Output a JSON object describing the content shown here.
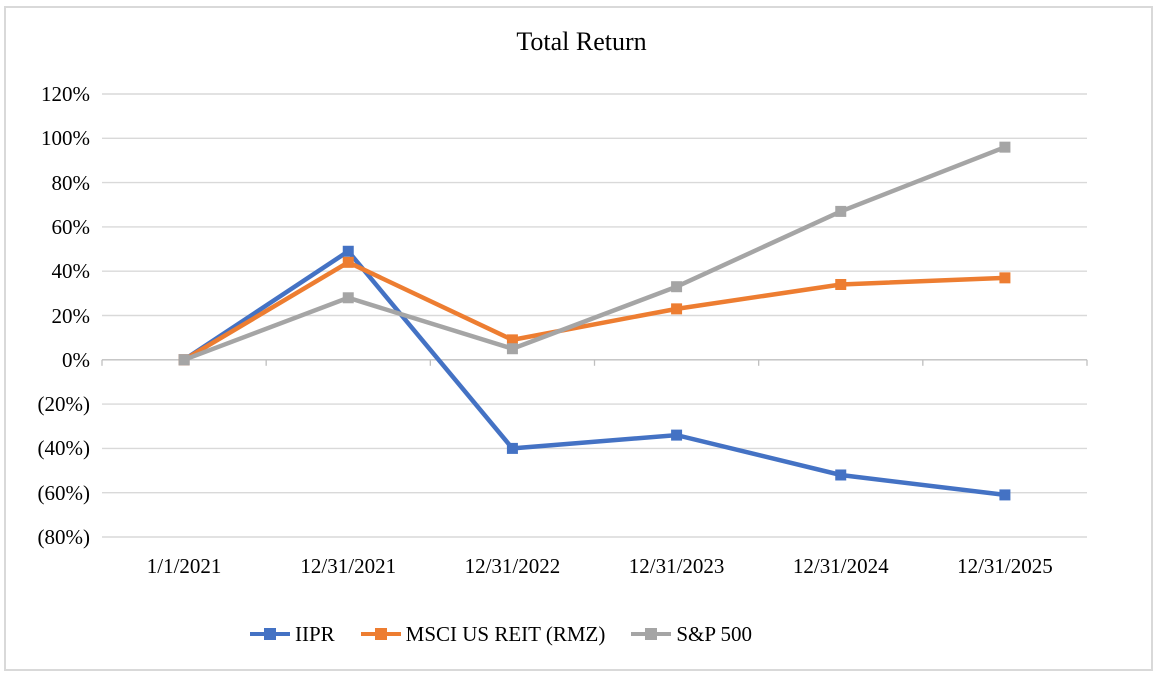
{
  "window": {
    "background": "#ffffff",
    "frame_border_color": "#d9d9d9"
  },
  "chart_data": {
    "type": "line",
    "title": "Total Return",
    "x_labels": [
      "1/1/2021",
      "12/31/2021",
      "12/31/2022",
      "12/31/2023",
      "12/31/2024",
      "12/31/2025"
    ],
    "y_tick_labels": [
      "120%",
      "100%",
      "80%",
      "60%",
      "40%",
      "20%",
      "0%",
      "(20%)",
      "(40%)",
      "(60%)",
      "(80%)"
    ],
    "y_tick_values": [
      120,
      100,
      80,
      60,
      40,
      20,
      0,
      -20,
      -40,
      -60,
      -80
    ],
    "ylim": [
      -80,
      120
    ],
    "grid": true,
    "gridline_color": "#d9d9d9",
    "axis_line_color": "#bfbfbf",
    "text_color": "#000000",
    "marker": "square",
    "legend_position": "bottom",
    "series": [
      {
        "name": "IIPR",
        "color": "#4472C4",
        "values": [
          0,
          49,
          -40,
          -34,
          -52,
          -61
        ]
      },
      {
        "name": "MSCI US REIT (RMZ)",
        "color": "#ED7D31",
        "values": [
          0,
          44,
          9,
          23,
          34,
          37
        ]
      },
      {
        "name": "S&P 500",
        "color": "#A5A5A5",
        "values": [
          0,
          28,
          5,
          33,
          67,
          96
        ]
      }
    ]
  }
}
